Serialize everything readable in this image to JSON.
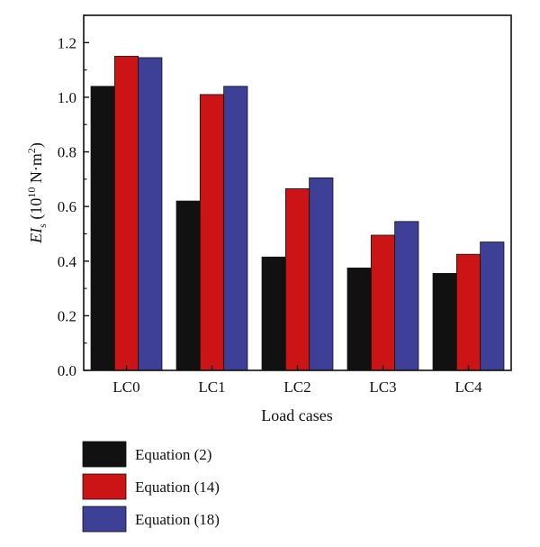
{
  "chart_data": {
    "type": "bar",
    "categories": [
      "LC0",
      "LC1",
      "LC2",
      "LC3",
      "LC4"
    ],
    "series": [
      {
        "name": "Equation (2)",
        "color": "#111111",
        "values": [
          1.04,
          0.62,
          0.415,
          0.375,
          0.355
        ]
      },
      {
        "name": "Equation (14)",
        "color": "#cc1417",
        "values": [
          1.15,
          1.01,
          0.665,
          0.495,
          0.425
        ]
      },
      {
        "name": "Equation (18)",
        "color": "#3e3f96",
        "values": [
          1.145,
          1.04,
          0.705,
          0.545,
          0.47
        ]
      }
    ],
    "xlabel": "Load cases",
    "ylabel": {
      "main": "EI",
      "subscript": "s",
      "unit_open": " (10",
      "unit_exp": "10",
      "unit_mid": " N·m",
      "unit_exp2": "2",
      "unit_close": ")"
    },
    "ylim": [
      0.0,
      1.3
    ],
    "yticks": [
      "0.0",
      "0.2",
      "0.4",
      "0.6",
      "0.8",
      "1.0",
      "1.2"
    ],
    "ytick_values": [
      0.0,
      0.2,
      0.4,
      0.6,
      0.8,
      1.0,
      1.2
    ],
    "grid": false,
    "legend_position": "bottom-left"
  }
}
